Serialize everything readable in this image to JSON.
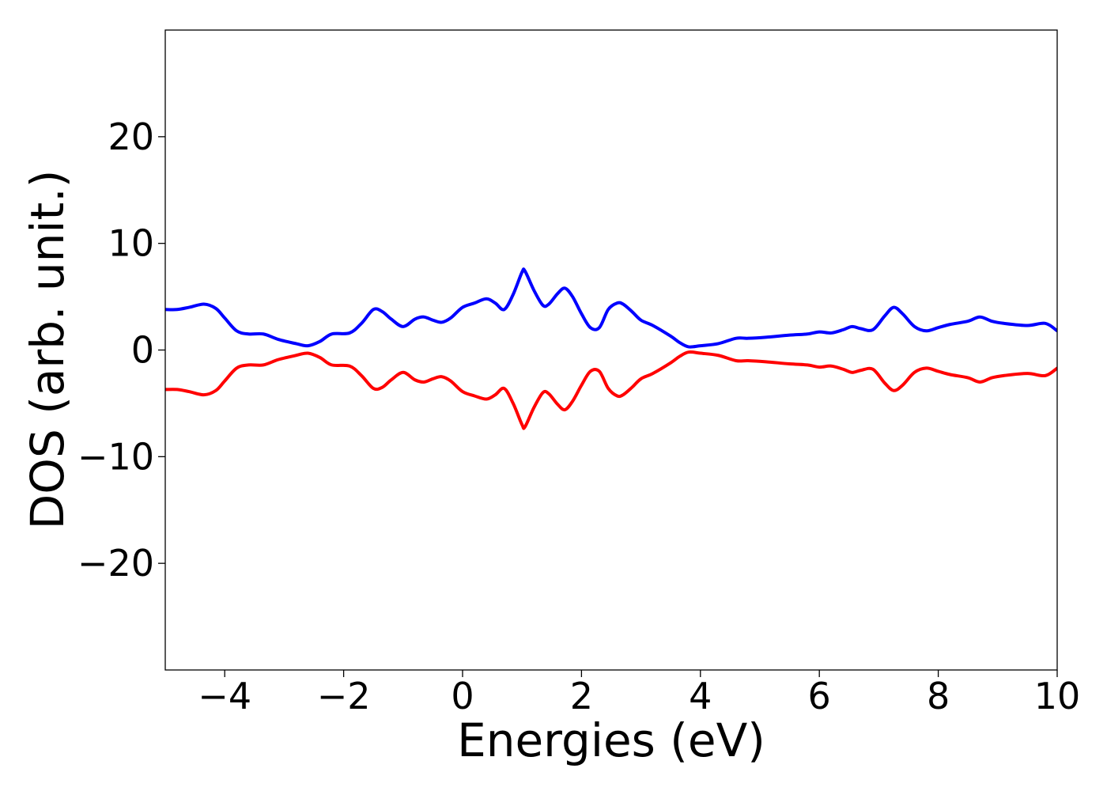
{
  "chart_data": {
    "type": "line",
    "title": "",
    "xlabel": "Energies (eV)",
    "ylabel": "DOS (arb. unit.)",
    "xlim": [
      -5,
      10
    ],
    "ylim": [
      -30,
      30
    ],
    "xticks": [
      -4,
      -2,
      0,
      2,
      4,
      6,
      8,
      10
    ],
    "xtick_labels": [
      "−4",
      "−2",
      "0",
      "2",
      "4",
      "6",
      "8",
      "10"
    ],
    "yticks": [
      -20,
      -10,
      0,
      10,
      20
    ],
    "ytick_labels": [
      "−20",
      "−10",
      "0",
      "10",
      "20"
    ],
    "grid": false,
    "legend": "none",
    "series": [
      {
        "color": "#0000ff",
        "x": [
          -5.0,
          -4.8,
          -4.6,
          -4.35,
          -4.15,
          -4.0,
          -3.8,
          -3.6,
          -3.35,
          -3.1,
          -2.8,
          -2.6,
          -2.4,
          -2.2,
          -1.9,
          -1.7,
          -1.5,
          -1.35,
          -1.2,
          -1.0,
          -0.8,
          -0.65,
          -0.5,
          -0.35,
          -0.2,
          0.0,
          0.2,
          0.4,
          0.55,
          0.7,
          0.85,
          1.0,
          1.05,
          1.2,
          1.35,
          1.45,
          1.6,
          1.72,
          1.85,
          2.0,
          2.15,
          2.3,
          2.45,
          2.6,
          2.7,
          2.85,
          3.0,
          3.2,
          3.5,
          3.65,
          3.8,
          4.0,
          4.3,
          4.6,
          4.8,
          5.1,
          5.5,
          5.8,
          6.0,
          6.2,
          6.4,
          6.55,
          6.7,
          6.9,
          7.1,
          7.25,
          7.4,
          7.6,
          7.8,
          8.0,
          8.2,
          8.5,
          8.7,
          8.9,
          9.1,
          9.5,
          9.8,
          10.0
        ],
        "y": [
          3.8,
          3.8,
          4.0,
          4.3,
          3.9,
          3.0,
          1.8,
          1.5,
          1.5,
          1.0,
          0.6,
          0.4,
          0.8,
          1.5,
          1.6,
          2.5,
          3.8,
          3.6,
          2.9,
          2.2,
          2.9,
          3.1,
          2.8,
          2.6,
          3.0,
          4.0,
          4.4,
          4.8,
          4.4,
          3.8,
          5.2,
          7.3,
          7.4,
          5.6,
          4.2,
          4.3,
          5.3,
          5.8,
          5.0,
          3.4,
          2.1,
          2.1,
          3.8,
          4.4,
          4.3,
          3.6,
          2.8,
          2.3,
          1.3,
          0.7,
          0.3,
          0.4,
          0.6,
          1.1,
          1.1,
          1.2,
          1.4,
          1.5,
          1.7,
          1.6,
          1.9,
          2.2,
          2.0,
          1.9,
          3.2,
          4.0,
          3.4,
          2.2,
          1.8,
          2.1,
          2.4,
          2.7,
          3.1,
          2.7,
          2.5,
          2.3,
          2.5,
          1.8
        ]
      },
      {
        "color": "#ff0000",
        "x": [
          -5.0,
          -4.8,
          -4.6,
          -4.35,
          -4.15,
          -4.0,
          -3.8,
          -3.6,
          -3.35,
          -3.1,
          -2.8,
          -2.6,
          -2.4,
          -2.2,
          -1.9,
          -1.7,
          -1.5,
          -1.35,
          -1.2,
          -1.0,
          -0.8,
          -0.65,
          -0.5,
          -0.35,
          -0.2,
          0.0,
          0.2,
          0.4,
          0.55,
          0.7,
          0.85,
          1.0,
          1.05,
          1.2,
          1.35,
          1.45,
          1.6,
          1.72,
          1.85,
          2.0,
          2.15,
          2.3,
          2.45,
          2.6,
          2.7,
          2.85,
          3.0,
          3.2,
          3.5,
          3.65,
          3.8,
          4.0,
          4.3,
          4.6,
          4.8,
          5.1,
          5.5,
          5.8,
          6.0,
          6.2,
          6.4,
          6.55,
          6.7,
          6.9,
          7.1,
          7.25,
          7.4,
          7.6,
          7.8,
          8.0,
          8.2,
          8.5,
          8.7,
          8.9,
          9.1,
          9.5,
          9.8,
          10.0
        ],
        "y": [
          -3.7,
          -3.7,
          -3.9,
          -4.2,
          -3.8,
          -2.9,
          -1.7,
          -1.4,
          -1.4,
          -0.9,
          -0.5,
          -0.3,
          -0.7,
          -1.4,
          -1.5,
          -2.4,
          -3.6,
          -3.5,
          -2.8,
          -2.1,
          -2.8,
          -3.0,
          -2.7,
          -2.5,
          -2.9,
          -3.9,
          -4.3,
          -4.6,
          -4.2,
          -3.6,
          -5.0,
          -7.0,
          -7.2,
          -5.4,
          -4.0,
          -4.1,
          -5.1,
          -5.6,
          -4.8,
          -3.3,
          -2.0,
          -2.0,
          -3.6,
          -4.3,
          -4.2,
          -3.5,
          -2.7,
          -2.2,
          -1.2,
          -0.6,
          -0.2,
          -0.3,
          -0.5,
          -1.0,
          -1.0,
          -1.1,
          -1.3,
          -1.4,
          -1.6,
          -1.5,
          -1.8,
          -2.1,
          -1.9,
          -1.8,
          -3.1,
          -3.8,
          -3.3,
          -2.1,
          -1.7,
          -2.0,
          -2.3,
          -2.6,
          -3.0,
          -2.6,
          -2.4,
          -2.2,
          -2.4,
          -1.7
        ]
      }
    ]
  }
}
